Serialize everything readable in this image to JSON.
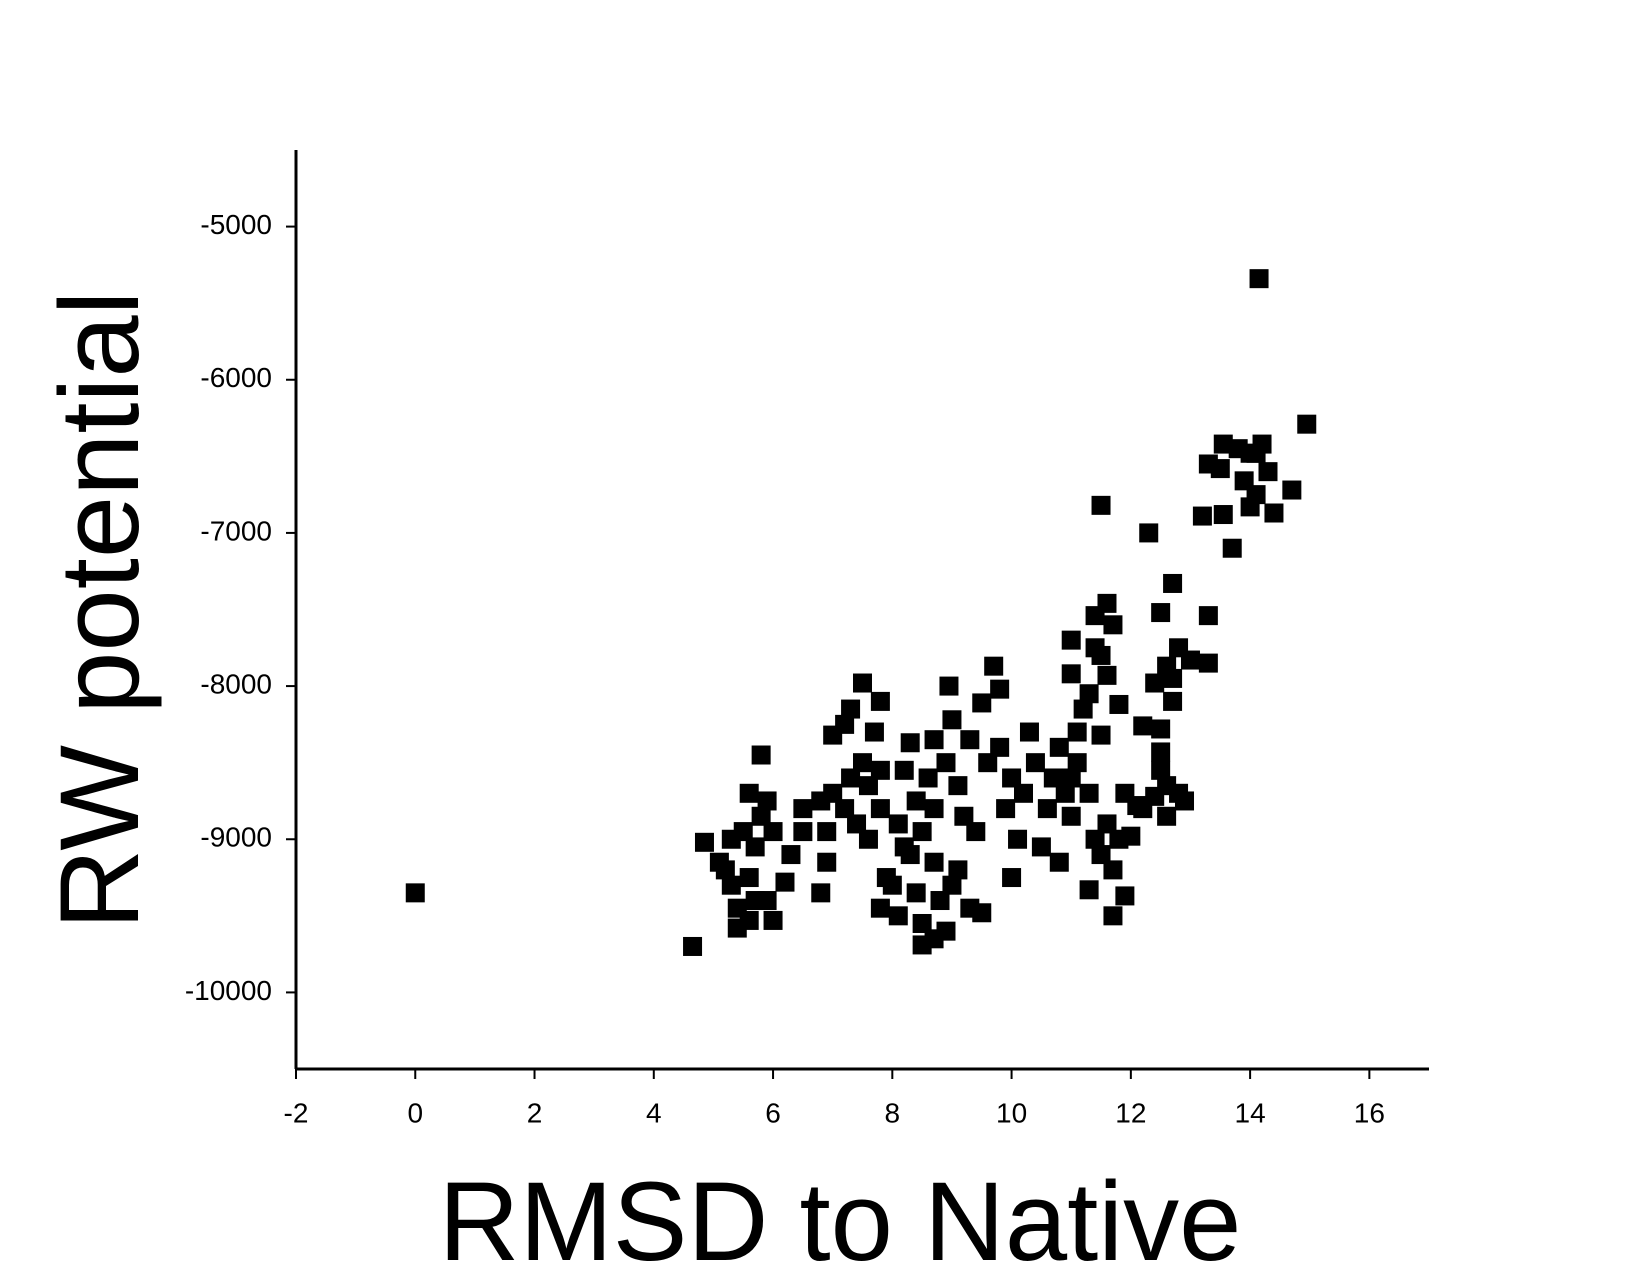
{
  "chart_data": {
    "type": "scatter",
    "x_label": "RMSD to Native",
    "y_label": "RW potential",
    "color": "#000000",
    "x": [
      0,
      14.15,
      14.95,
      4.65,
      4.85,
      5.8,
      11.5,
      12.3,
      13.3,
      13.55,
      13.8,
      14.0,
      14.2,
      13.5,
      13.9,
      14.1,
      14.3,
      14.0,
      14.4,
      14.7,
      13.2,
      13.55,
      13.7,
      14.1,
      12.7,
      12.5,
      13.3,
      11.6,
      11.4,
      11.7,
      11.0,
      11.4,
      11.5,
      12.8,
      13.0,
      13.3,
      12.6,
      11.6,
      11.0,
      12.4,
      12.7,
      12.7,
      11.3,
      11.8,
      11.2,
      12.2,
      12.5,
      11.1,
      11.5,
      12.5,
      12.5,
      12.6,
      12.8,
      12.9,
      12.4,
      12.6,
      12.2,
      11.9,
      12.1,
      11.6,
      11.8,
      12.0,
      11.5,
      11.7,
      11.3,
      11.9,
      11.7,
      11.1,
      11.0,
      10.8,
      10.9,
      10.6,
      10.3,
      10.4,
      10.2,
      10.0,
      9.8,
      9.6,
      9.9,
      10.1,
      10.0,
      10.5,
      10.8,
      9.7,
      9.8,
      9.5,
      8.95,
      9.0,
      9.3,
      8.7,
      8.3,
      8.9,
      9.1,
      8.6,
      8.2,
      8.4,
      8.7,
      9.2,
      9.4,
      8.5,
      8.1,
      7.8,
      8.3,
      8.7,
      9.1,
      8.0,
      8.4,
      8.8,
      9.3,
      7.8,
      8.1,
      8.5,
      8.9,
      9.0,
      8.5,
      8.7,
      9.5,
      7.9,
      8.2,
      7.5,
      7.3,
      7.2,
      7.0,
      7.8,
      7.7,
      7.5,
      7.8,
      7.3,
      7.0,
      7.6,
      7.2,
      6.8,
      7.4,
      7.6,
      6.9,
      6.5,
      6.9,
      6.8,
      6.3,
      6.2,
      6.0,
      5.9,
      5.6,
      5.8,
      5.5,
      5.7,
      5.3,
      5.1,
      5.6,
      5.3,
      5.4,
      5.7,
      5.9,
      5.4,
      5.6,
      6.0,
      5.2,
      6.5,
      10.7,
      11.3,
      11.0,
      11.4
    ],
    "values": [
      -9350,
      -5340,
      -6290,
      -9700,
      -9020,
      -8450,
      -6820,
      -7000,
      -6550,
      -6420,
      -6450,
      -6480,
      -6420,
      -6580,
      -6660,
      -6750,
      -6600,
      -6830,
      -6870,
      -6720,
      -6890,
      -6880,
      -7100,
      -6480,
      -7330,
      -7520,
      -7540,
      -7460,
      -7540,
      -7600,
      -7700,
      -7750,
      -7800,
      -7750,
      -7830,
      -7850,
      -7870,
      -7930,
      -7920,
      -7980,
      -7950,
      -8100,
      -8050,
      -8120,
      -8150,
      -8260,
      -8280,
      -8300,
      -8320,
      -8430,
      -8550,
      -8650,
      -8700,
      -8750,
      -8720,
      -8850,
      -8800,
      -8700,
      -8780,
      -8900,
      -9000,
      -8980,
      -9100,
      -9200,
      -9330,
      -9370,
      -9500,
      -8500,
      -8600,
      -8400,
      -8700,
      -8800,
      -8300,
      -8500,
      -8700,
      -8600,
      -8400,
      -8500,
      -8800,
      -9000,
      -9250,
      -9050,
      -9150,
      -7870,
      -8020,
      -8110,
      -8000,
      -8220,
      -8350,
      -8350,
      -8370,
      -8500,
      -8650,
      -8600,
      -8550,
      -8750,
      -8800,
      -8850,
      -8950,
      -8950,
      -8900,
      -8800,
      -9100,
      -9150,
      -9200,
      -9300,
      -9350,
      -9400,
      -9450,
      -9450,
      -9500,
      -9550,
      -9600,
      -9300,
      -9690,
      -9650,
      -9480,
      -9250,
      -9050,
      -7980,
      -8150,
      -8250,
      -8320,
      -8100,
      -8300,
      -8500,
      -8550,
      -8600,
      -8700,
      -8650,
      -8800,
      -8750,
      -8900,
      -9000,
      -8950,
      -8800,
      -9150,
      -9350,
      -9100,
      -9280,
      -8950,
      -8750,
      -8700,
      -8850,
      -8950,
      -9050,
      -9000,
      -9150,
      -9250,
      -9300,
      -9450,
      -9400,
      -9400,
      -9580,
      -9530,
      -9530,
      -9200,
      -8950,
      -8600,
      -8700,
      -8850,
      -9000
    ],
    "xlim": [
      -2,
      17
    ],
    "xticks": [
      -2,
      0,
      2,
      4,
      6,
      8,
      10,
      12,
      14,
      16
    ],
    "ylim": [
      -10500,
      -4500
    ],
    "yticks": [
      -10000,
      -9000,
      -8000,
      -7000,
      -6000,
      -5000
    ],
    "grid": false
  }
}
